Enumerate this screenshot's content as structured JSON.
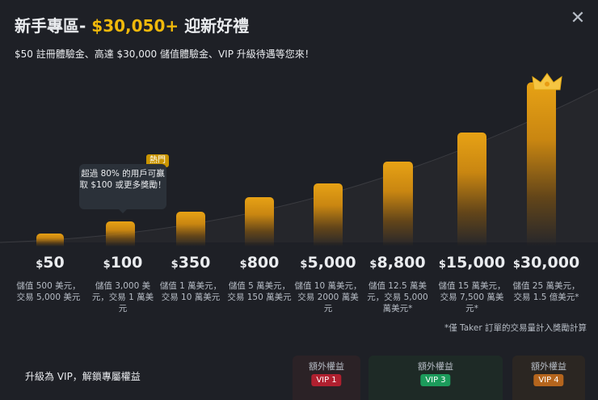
{
  "header": {
    "title_prefix": "新手專區-",
    "title_amount": "$30,050+",
    "title_suffix": "迎新好禮",
    "subtitle": "$50 註冊體驗金、高達 $30,000 儲值體驗金、VIP 升級待遇等您來！"
  },
  "tooltip": {
    "text": "超過 80% 的用戶可贏取 $100 或更多獎勵！",
    "hot_badge": "熱門"
  },
  "tiers": [
    {
      "currency": "$",
      "amount": "50",
      "desc": "儲值 500 美元，交易 5,000 美元"
    },
    {
      "currency": "$",
      "amount": "100",
      "desc": "儲值 3,000 美元，交易 1 萬美元"
    },
    {
      "currency": "$",
      "amount": "350",
      "desc": "儲值 1 萬美元，交易 10 萬美元"
    },
    {
      "currency": "$",
      "amount": "800",
      "desc": "儲值 5 萬美元，交易 150 萬美元"
    },
    {
      "currency": "$",
      "amount": "5,000",
      "desc": "儲值 10 萬美元，交易 2000 萬美元"
    },
    {
      "currency": "$",
      "amount": "8,800",
      "desc": "儲值 12.5 萬美元，交易 5,000 萬美元*"
    },
    {
      "currency": "$",
      "amount": "15,000",
      "desc": "儲值 15 萬美元，交易 7,500 萬美元*"
    },
    {
      "currency": "$",
      "amount": "30,000",
      "desc": "儲值 25 萬美元，交易 1.5 億美元*"
    }
  ],
  "footnote": "*僅 Taker 訂單的交易量計入獎勵計算",
  "vip": {
    "label": "升級為 VIP，解鎖專屬權益",
    "benefits": [
      {
        "label": "額外權益",
        "badge": "VIP 1",
        "badge_color": "#b0202f",
        "bg": "#2b2226"
      },
      {
        "label": "額外權益",
        "badge": "VIP 3",
        "badge_color": "#1c9b5b",
        "bg": "#1e2a26"
      },
      {
        "label": "額外權益",
        "badge": "VIP 4",
        "badge_color": "#b5651d",
        "bg": "#2b2622"
      }
    ]
  },
  "colors": {
    "accent": "#f0b90b",
    "background": "#1e2026"
  },
  "icons": {
    "close": "close-icon",
    "crown": "crown-icon"
  }
}
